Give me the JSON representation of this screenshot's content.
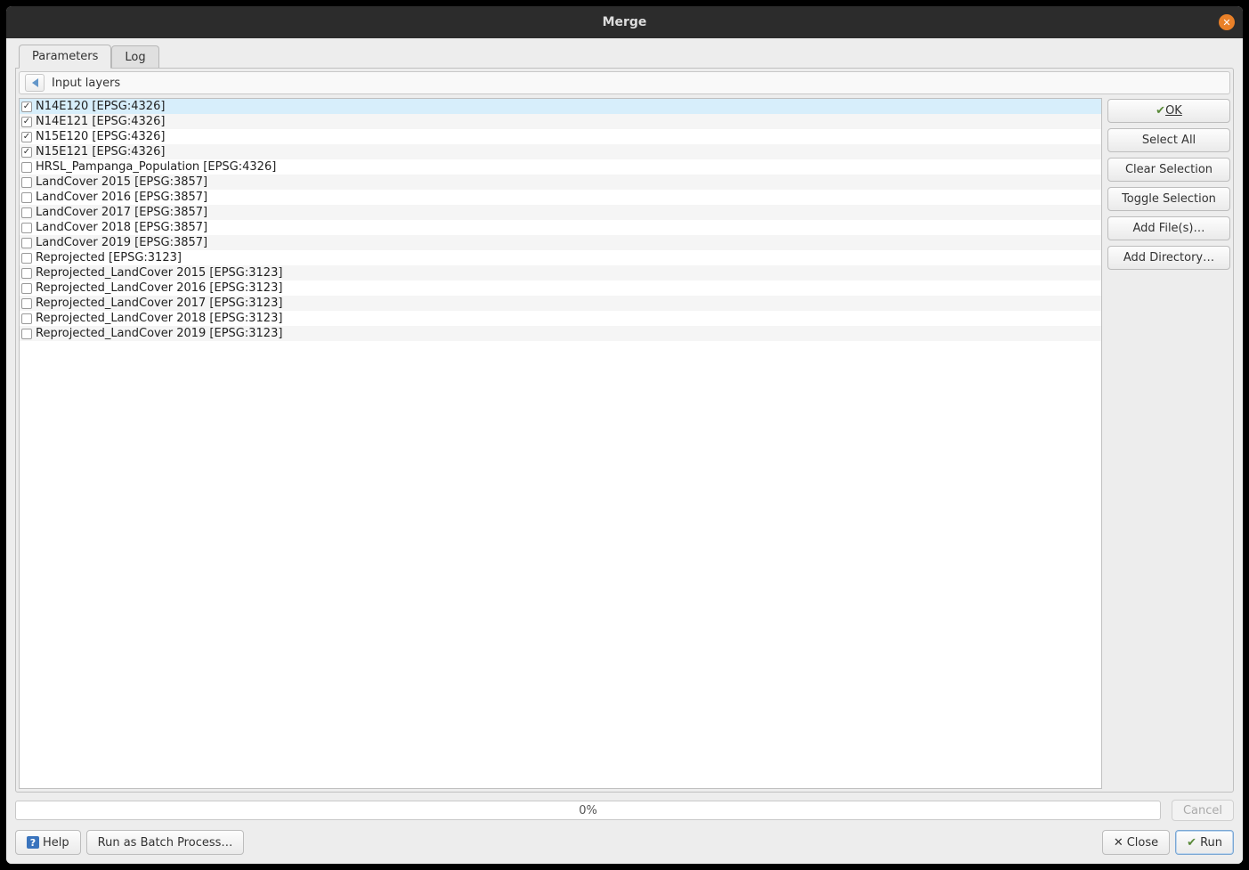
{
  "window": {
    "title": "Merge"
  },
  "tabs": {
    "parameters": "Parameters",
    "log": "Log"
  },
  "heading": "Input layers",
  "layers": [
    {
      "label": "N14E120 [EPSG:4326]",
      "checked": true,
      "selected": true
    },
    {
      "label": "N14E121 [EPSG:4326]",
      "checked": true,
      "selected": false
    },
    {
      "label": "N15E120 [EPSG:4326]",
      "checked": true,
      "selected": false
    },
    {
      "label": "N15E121 [EPSG:4326]",
      "checked": true,
      "selected": false
    },
    {
      "label": "HRSL_Pampanga_Population [EPSG:4326]",
      "checked": false,
      "selected": false
    },
    {
      "label": "LandCover 2015 [EPSG:3857]",
      "checked": false,
      "selected": false
    },
    {
      "label": "LandCover 2016 [EPSG:3857]",
      "checked": false,
      "selected": false
    },
    {
      "label": "LandCover 2017 [EPSG:3857]",
      "checked": false,
      "selected": false
    },
    {
      "label": "LandCover 2018 [EPSG:3857]",
      "checked": false,
      "selected": false
    },
    {
      "label": "LandCover 2019 [EPSG:3857]",
      "checked": false,
      "selected": false
    },
    {
      "label": "Reprojected [EPSG:3123]",
      "checked": false,
      "selected": false
    },
    {
      "label": "Reprojected_LandCover 2015 [EPSG:3123]",
      "checked": false,
      "selected": false
    },
    {
      "label": "Reprojected_LandCover 2016 [EPSG:3123]",
      "checked": false,
      "selected": false
    },
    {
      "label": "Reprojected_LandCover 2017 [EPSG:3123]",
      "checked": false,
      "selected": false
    },
    {
      "label": "Reprojected_LandCover 2018 [EPSG:3123]",
      "checked": false,
      "selected": false
    },
    {
      "label": "Reprojected_LandCover 2019 [EPSG:3123]",
      "checked": false,
      "selected": false
    }
  ],
  "side_buttons": {
    "ok": "OK",
    "select_all": "Select All",
    "clear_selection": "Clear Selection",
    "toggle_selection": "Toggle Selection",
    "add_files": "Add File(s)…",
    "add_directory": "Add Directory…"
  },
  "progress": {
    "text": "0%",
    "cancel": "Cancel"
  },
  "bottom": {
    "help": "Help",
    "batch": "Run as Batch Process…",
    "close": "Close",
    "run": "Run"
  }
}
